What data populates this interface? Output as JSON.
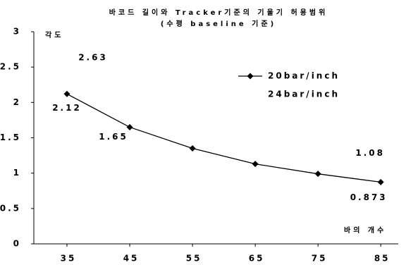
{
  "chart_data": {
    "type": "line",
    "title": "바코드 길이와 Tracker기준의 기울기 허용범위",
    "subtitle": "(수평 baseline 기준)",
    "y_label": "각도",
    "x_label": "바의 개수",
    "x": [
      35,
      45,
      55,
      65,
      75,
      85
    ],
    "xlim": [
      30,
      87
    ],
    "xticks": [
      35,
      45,
      55,
      65,
      75,
      85
    ],
    "ylim": [
      0,
      3
    ],
    "yticks": [
      0,
      0.5,
      1,
      1.5,
      2,
      2.5,
      3
    ],
    "series": [
      {
        "name": "20bar/inch",
        "color": "#000000",
        "marker": "diamond",
        "values": [
          2.12,
          1.65,
          1.35,
          1.13,
          0.99,
          0.873
        ],
        "labeled": [
          true,
          true,
          false,
          false,
          false,
          true
        ]
      },
      {
        "name": "24bar/inch",
        "color": "#ffffff",
        "marker": "none",
        "values": [
          2.63,
          null,
          null,
          null,
          null,
          1.08
        ],
        "labeled": [
          true,
          false,
          false,
          false,
          false,
          true
        ]
      }
    ]
  }
}
